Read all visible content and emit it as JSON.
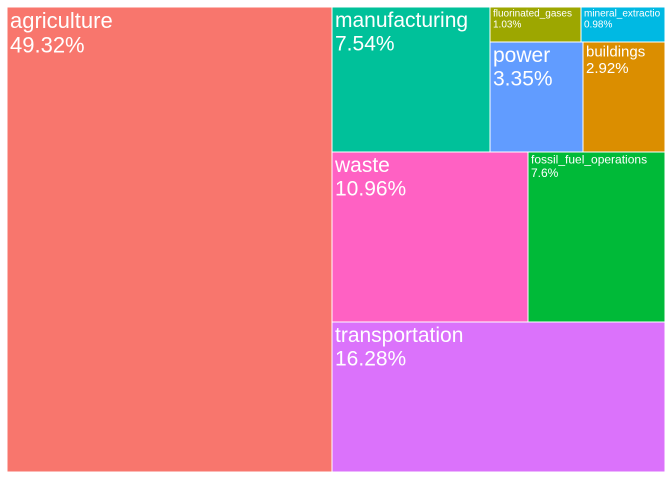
{
  "chart_data": {
    "type": "treemap",
    "tiles": [
      {
        "name": "agriculture",
        "value_label": "49.32%",
        "value": 49.32,
        "color": "#F8766D"
      },
      {
        "name": "manufacturing",
        "value_label": "7.54%",
        "value": 7.54,
        "color": "#00C19A"
      },
      {
        "name": "fluorinated_gases",
        "value_label": "1.03%",
        "value": 1.03,
        "color": "#9DA700"
      },
      {
        "name": "mineral_extractio",
        "value_label": "0.98%",
        "value": 0.98,
        "color": "#00B9E3"
      },
      {
        "name": "power",
        "value_label": "3.35%",
        "value": 3.35,
        "color": "#619CFF"
      },
      {
        "name": "buildings",
        "value_label": "2.92%",
        "value": 2.92,
        "color": "#DB8E00"
      },
      {
        "name": "waste",
        "value_label": "10.96%",
        "value": 10.96,
        "color": "#FF61C3"
      },
      {
        "name": "fossil_fuel_operations",
        "value_label": "7.6%",
        "value": 7.6,
        "color": "#00BA38"
      },
      {
        "name": "transportation",
        "value_label": "16.28%",
        "value": 16.28,
        "color": "#DB72FB"
      }
    ]
  }
}
